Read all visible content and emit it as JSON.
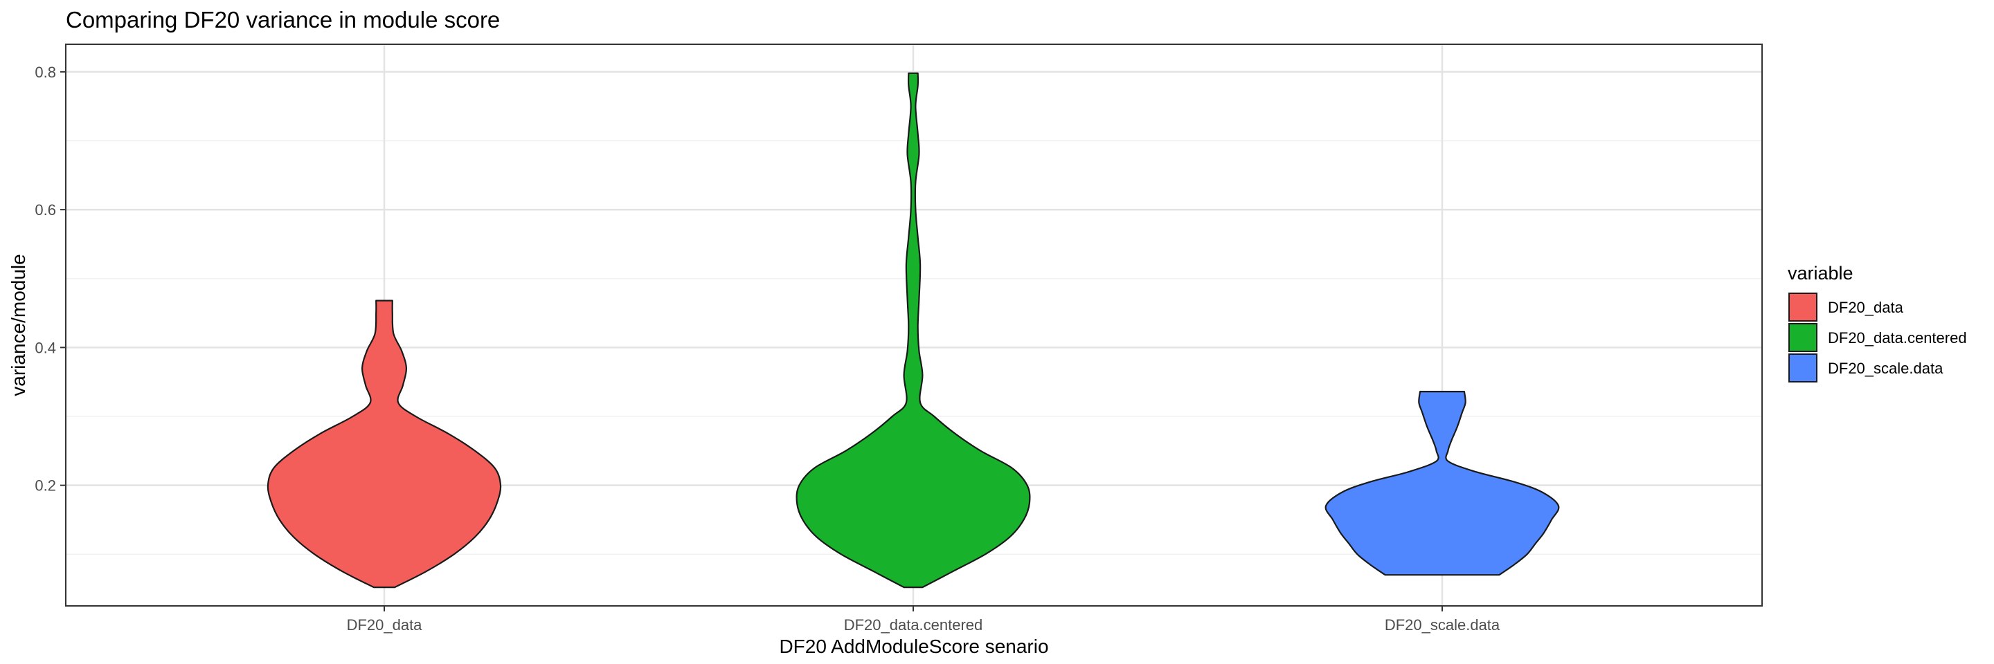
{
  "chart_data": {
    "type": "violin",
    "title": "Comparing DF20 variance in module score",
    "xlabel": "DF20 AddModuleScore senario",
    "ylabel": "variance/module",
    "ylim": [
      0.025,
      0.84
    ],
    "y_ticks": [
      0.2,
      0.4,
      0.6,
      0.8
    ],
    "y_tick_labels": [
      "0.2",
      "0.4",
      "0.6",
      "0.8"
    ],
    "categories": [
      "DF20_data",
      "DF20_data.centered",
      "DF20_scale.data"
    ],
    "grid": true,
    "legend": {
      "title": "variable",
      "position": "right"
    },
    "series": [
      {
        "name": "DF20_data",
        "color": "#F35E5A",
        "min": 0.052,
        "max": 0.468,
        "density_profile": [
          [
            0.052,
            0.09
          ],
          [
            0.075,
            0.36
          ],
          [
            0.1,
            0.6
          ],
          [
            0.125,
            0.78
          ],
          [
            0.15,
            0.9
          ],
          [
            0.175,
            0.97
          ],
          [
            0.2,
            1.0
          ],
          [
            0.225,
            0.95
          ],
          [
            0.25,
            0.78
          ],
          [
            0.275,
            0.55
          ],
          [
            0.3,
            0.27
          ],
          [
            0.32,
            0.12
          ],
          [
            0.345,
            0.16
          ],
          [
            0.37,
            0.19
          ],
          [
            0.395,
            0.15
          ],
          [
            0.42,
            0.08
          ],
          [
            0.45,
            0.07
          ],
          [
            0.468,
            0.07
          ]
        ]
      },
      {
        "name": "DF20_data.centered",
        "color": "#17B12B",
        "min": 0.052,
        "max": 0.798,
        "density_profile": [
          [
            0.052,
            0.08
          ],
          [
            0.075,
            0.34
          ],
          [
            0.1,
            0.62
          ],
          [
            0.125,
            0.83
          ],
          [
            0.15,
            0.95
          ],
          [
            0.175,
            1.0
          ],
          [
            0.2,
            0.98
          ],
          [
            0.225,
            0.85
          ],
          [
            0.25,
            0.58
          ],
          [
            0.275,
            0.36
          ],
          [
            0.3,
            0.18
          ],
          [
            0.32,
            0.06
          ],
          [
            0.36,
            0.08
          ],
          [
            0.395,
            0.05
          ],
          [
            0.43,
            0.04
          ],
          [
            0.47,
            0.05
          ],
          [
            0.52,
            0.06
          ],
          [
            0.56,
            0.04
          ],
          [
            0.6,
            0.02
          ],
          [
            0.64,
            0.02
          ],
          [
            0.68,
            0.05
          ],
          [
            0.71,
            0.04
          ],
          [
            0.75,
            0.02
          ],
          [
            0.78,
            0.04
          ],
          [
            0.798,
            0.04
          ]
        ]
      },
      {
        "name": "DF20_scale.data",
        "color": "#5087FF",
        "min": 0.07,
        "max": 0.336,
        "density_profile": [
          [
            0.07,
            0.49
          ],
          [
            0.085,
            0.62
          ],
          [
            0.1,
            0.73
          ],
          [
            0.115,
            0.8
          ],
          [
            0.13,
            0.87
          ],
          [
            0.15,
            0.94
          ],
          [
            0.17,
            1.0
          ],
          [
            0.19,
            0.86
          ],
          [
            0.205,
            0.62
          ],
          [
            0.22,
            0.28
          ],
          [
            0.235,
            0.05
          ],
          [
            0.25,
            0.05
          ],
          [
            0.265,
            0.08
          ],
          [
            0.285,
            0.13
          ],
          [
            0.305,
            0.17
          ],
          [
            0.32,
            0.2
          ],
          [
            0.336,
            0.19
          ]
        ]
      }
    ]
  }
}
